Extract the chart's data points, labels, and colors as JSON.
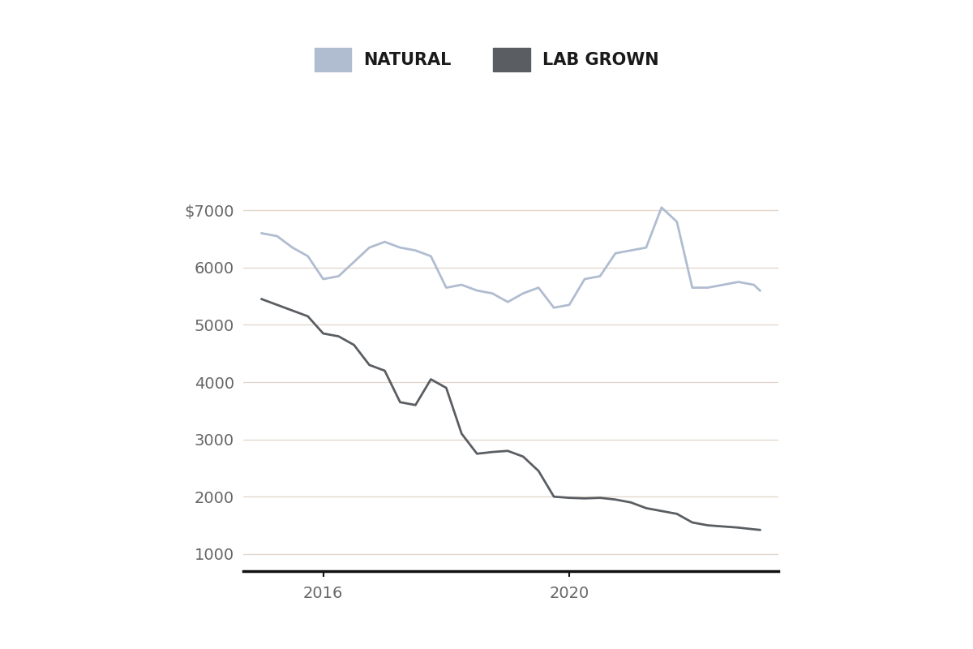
{
  "natural_x": [
    2015.0,
    2015.25,
    2015.5,
    2015.75,
    2016.0,
    2016.25,
    2016.5,
    2016.75,
    2017.0,
    2017.25,
    2017.5,
    2017.75,
    2018.0,
    2018.25,
    2018.5,
    2018.75,
    2019.0,
    2019.25,
    2019.5,
    2019.75,
    2020.0,
    2020.25,
    2020.5,
    2020.75,
    2021.0,
    2021.25,
    2021.5,
    2021.75,
    2022.0,
    2022.25,
    2022.5,
    2022.75,
    2023.0,
    2023.1
  ],
  "natural_y": [
    6600,
    6550,
    6350,
    6200,
    5800,
    5850,
    6100,
    6350,
    6450,
    6350,
    6300,
    6200,
    5650,
    5700,
    5600,
    5550,
    5400,
    5550,
    5650,
    5300,
    5350,
    5800,
    5850,
    6250,
    6300,
    6350,
    7050,
    6800,
    5650,
    5650,
    5700,
    5750,
    5700,
    5600
  ],
  "lab_x": [
    2015.0,
    2015.25,
    2015.5,
    2015.75,
    2016.0,
    2016.25,
    2016.5,
    2016.75,
    2017.0,
    2017.25,
    2017.5,
    2017.75,
    2018.0,
    2018.25,
    2018.5,
    2018.75,
    2019.0,
    2019.25,
    2019.5,
    2019.75,
    2020.0,
    2020.25,
    2020.5,
    2020.75,
    2021.0,
    2021.25,
    2021.5,
    2021.75,
    2022.0,
    2022.25,
    2022.5,
    2022.75,
    2023.0,
    2023.1
  ],
  "lab_y": [
    5450,
    5350,
    5250,
    5150,
    4850,
    4800,
    4650,
    4300,
    4200,
    3650,
    3600,
    4050,
    3900,
    3100,
    2750,
    2780,
    2800,
    2700,
    2450,
    2000,
    1980,
    1970,
    1980,
    1950,
    1900,
    1800,
    1750,
    1700,
    1550,
    1500,
    1480,
    1460,
    1430,
    1420
  ],
  "natural_color": "#b0bcd0",
  "lab_color": "#5a5e62",
  "background_color": "#ffffff",
  "grid_color": "#e0d5c8",
  "axis_color": "#111111",
  "yticks": [
    1000,
    2000,
    3000,
    4000,
    5000,
    6000,
    7000
  ],
  "ytick_labels": [
    "1000",
    "2000",
    "3000",
    "4000",
    "5000",
    "6000",
    "$7000"
  ],
  "xtick_labels": [
    "2016",
    "2020"
  ],
  "xtick_positions": [
    2016,
    2020
  ],
  "xlim": [
    2014.7,
    2023.4
  ],
  "ylim": [
    700,
    7500
  ],
  "legend_natural_label": "NATURAL",
  "legend_lab_label": "LAB GROWN",
  "legend_fontsize": 15,
  "tick_fontsize": 14,
  "line_width": 2.0
}
